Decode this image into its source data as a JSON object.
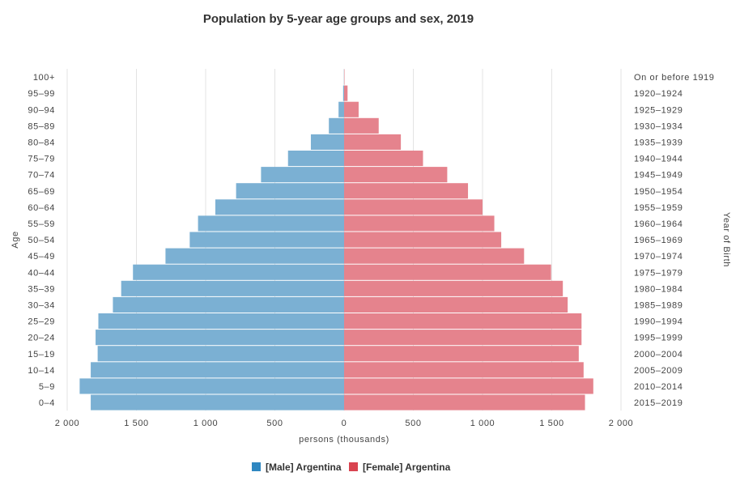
{
  "chart_data": {
    "type": "bar",
    "title": "Population by 5-year age groups and sex, 2019",
    "xlabel": "persons (thousands)",
    "ylabel": "Age",
    "y2label": "Year of Birth",
    "xlim": [
      -2000,
      2000
    ],
    "x_ticks": [
      -2000,
      -1500,
      -1000,
      -500,
      0,
      500,
      1000,
      1500,
      2000
    ],
    "x_tick_labels": [
      "2 000",
      "1 500",
      "1 000",
      "500",
      "0",
      "500",
      "1 000",
      "1 500",
      "2 000"
    ],
    "grid": true,
    "legend_position": "bottom",
    "categories": [
      "100+",
      "95–99",
      "90–94",
      "85–89",
      "80–84",
      "75–79",
      "70–74",
      "65–69",
      "60–64",
      "55–59",
      "50–54",
      "45–49",
      "40–44",
      "35–39",
      "30–34",
      "25–29",
      "20–24",
      "15–19",
      "10–14",
      "5–9",
      "0–4"
    ],
    "birth_years": [
      "On or before 1919",
      "1920–1924",
      "1925–1929",
      "1930–1934",
      "1935–1939",
      "1940–1944",
      "1945–1949",
      "1950–1954",
      "1955–1959",
      "1960–1964",
      "1965–1969",
      "1970–1974",
      "1975–1979",
      "1980–1984",
      "1985–1989",
      "1990–1994",
      "1995–1999",
      "2000–2004",
      "2005–2009",
      "2010–2014",
      "2015–2019"
    ],
    "series": [
      {
        "name": "[Male] Argentina",
        "color": "#7bb0d3",
        "legend_color": "#2f87c1",
        "values": [
          1,
          7,
          40,
          110,
          240,
          405,
          600,
          780,
          930,
          1055,
          1115,
          1290,
          1525,
          1610,
          1670,
          1775,
          1795,
          1780,
          1830,
          1910,
          1830
        ]
      },
      {
        "name": "[Female] Argentina",
        "color": "#e5838d",
        "legend_color": "#d9434f",
        "values": [
          3,
          25,
          105,
          250,
          410,
          570,
          745,
          895,
          1000,
          1085,
          1135,
          1300,
          1495,
          1580,
          1615,
          1715,
          1715,
          1695,
          1730,
          1800,
          1740
        ]
      }
    ]
  }
}
